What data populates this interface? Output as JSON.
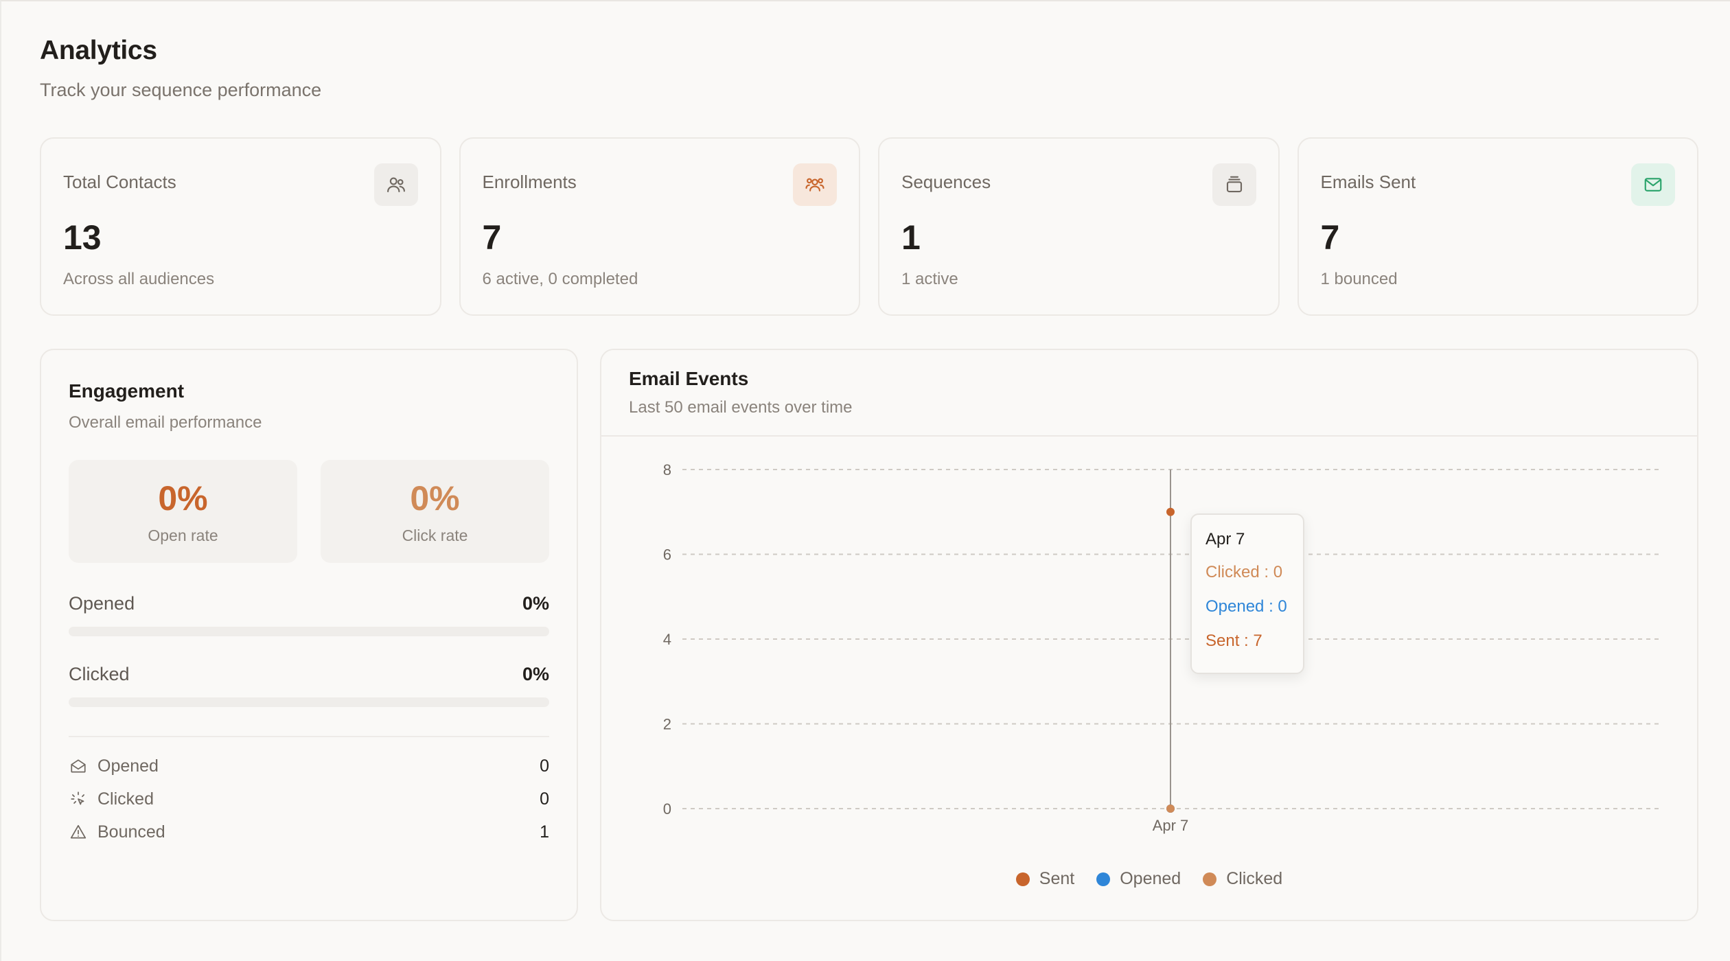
{
  "page": {
    "title": "Analytics",
    "subtitle": "Track your sequence performance"
  },
  "stats": [
    {
      "label": "Total Contacts",
      "value": "13",
      "detail": "Across all audiences",
      "icon": "users-icon",
      "icon_color": "#6f6861",
      "icon_bg": "#efedea"
    },
    {
      "label": "Enrollments",
      "value": "7",
      "detail": "6 active, 0 completed",
      "icon": "group-icon",
      "icon_color": "#c8652c",
      "icon_bg": "#f7e7dc"
    },
    {
      "label": "Sequences",
      "value": "1",
      "detail": "1 active",
      "icon": "layers-icon",
      "icon_color": "#6f6861",
      "icon_bg": "#efedea"
    },
    {
      "label": "Emails Sent",
      "value": "7",
      "detail": "1 bounced",
      "icon": "mail-icon",
      "icon_color": "#2aa36b",
      "icon_bg": "#e2f3ea"
    }
  ],
  "engagement": {
    "title": "Engagement",
    "subtitle": "Overall email performance",
    "open_rate": {
      "value": "0%",
      "label": "Open rate",
      "color": "#c8652c"
    },
    "click_rate": {
      "value": "0%",
      "label": "Click rate",
      "color": "#d08a57"
    },
    "bars": [
      {
        "label": "Opened",
        "pct": "0%",
        "fill": 0
      },
      {
        "label": "Clicked",
        "pct": "0%",
        "fill": 0
      }
    ],
    "counts": [
      {
        "label": "Opened",
        "value": "0",
        "icon": "mail-open-icon"
      },
      {
        "label": "Clicked",
        "value": "0",
        "icon": "click-icon"
      },
      {
        "label": "Bounced",
        "value": "1",
        "icon": "alert-triangle-icon"
      }
    ]
  },
  "events": {
    "title": "Email Events",
    "subtitle": "Last 50 email events over time",
    "tooltip": {
      "title": "Apr 7",
      "rows": [
        "Clicked : 0",
        "Opened : 0",
        "Sent : 7"
      ]
    }
  },
  "colors": {
    "sent": "#c8652c",
    "opened": "#2f86d8",
    "clicked": "#d08a57"
  },
  "chart_data": {
    "type": "line",
    "x": [
      "Apr 7"
    ],
    "series": [
      {
        "name": "Sent",
        "values": [
          7
        ],
        "color": "#c8652c"
      },
      {
        "name": "Opened",
        "values": [
          0
        ],
        "color": "#2f86d8"
      },
      {
        "name": "Clicked",
        "values": [
          0
        ],
        "color": "#d08a57"
      }
    ],
    "yticks": [
      0,
      2,
      4,
      6,
      8
    ],
    "ylim": [
      0,
      8
    ],
    "grid": true,
    "legend": "bottom-center",
    "title": "Email Events"
  }
}
